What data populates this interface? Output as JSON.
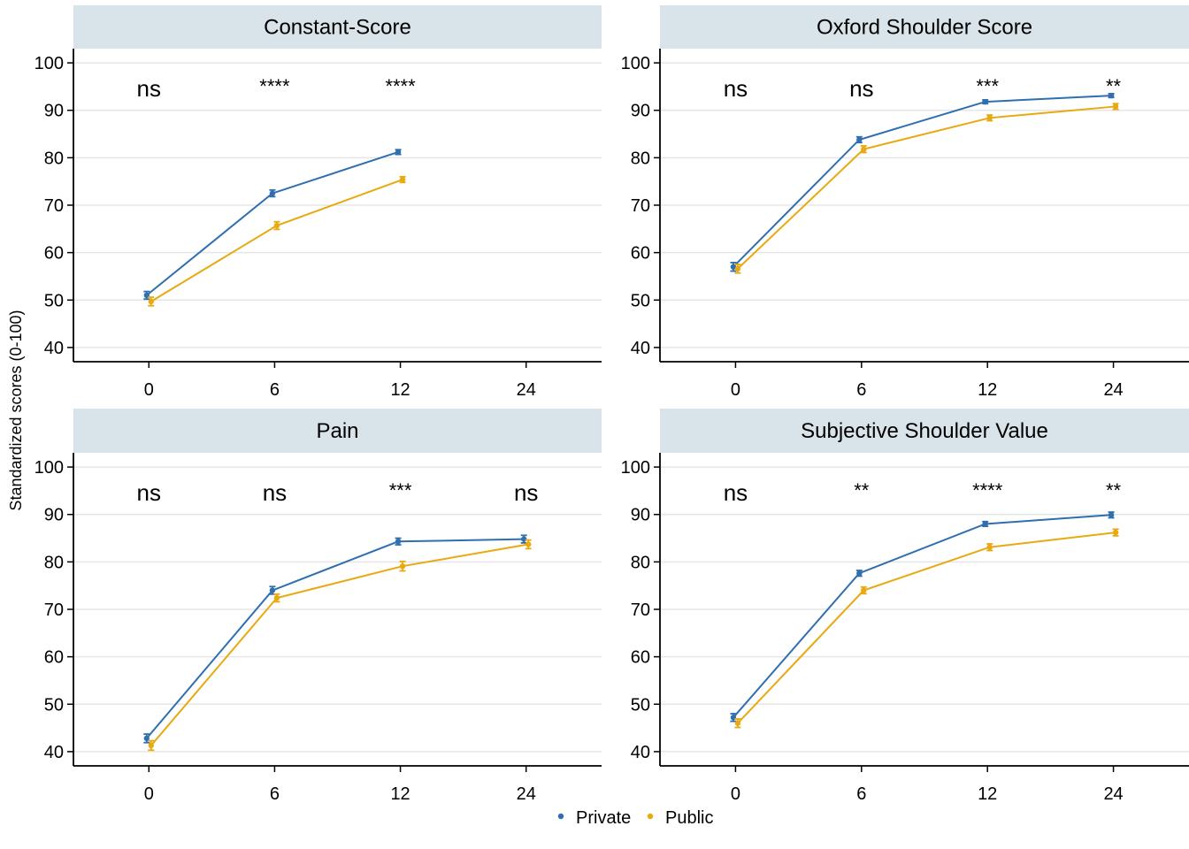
{
  "ylabel": "Standardized scores (0-100)",
  "colors": {
    "private": "#2f6fb0",
    "public": "#e8a911",
    "strip": "#d8e3ea",
    "grid": "#e6e6e6",
    "axis": "#000000"
  },
  "legend": [
    {
      "name": "Private",
      "color": "#2f6fb0"
    },
    {
      "name": "Public",
      "color": "#e8a911"
    }
  ],
  "chart_data": [
    {
      "type": "line",
      "title": "Constant-Score",
      "x": [
        "0",
        "6",
        "12",
        "24"
      ],
      "ylim": [
        37,
        103
      ],
      "yticks": [
        40,
        50,
        60,
        70,
        80,
        90,
        100
      ],
      "grid": true,
      "significance": [
        "ns",
        "****",
        "****",
        ""
      ],
      "series": [
        {
          "name": "Private",
          "values": [
            51.0,
            72.5,
            81.2,
            null
          ],
          "err": [
            0.8,
            0.7,
            0.5,
            null
          ]
        },
        {
          "name": "Public",
          "values": [
            49.7,
            65.7,
            75.4,
            null
          ],
          "err": [
            0.9,
            0.8,
            0.6,
            null
          ]
        }
      ]
    },
    {
      "type": "line",
      "title": "Oxford Shoulder Score",
      "x": [
        "0",
        "6",
        "12",
        "24"
      ],
      "ylim": [
        37,
        103
      ],
      "yticks": [
        40,
        50,
        60,
        70,
        80,
        90,
        100
      ],
      "grid": true,
      "significance": [
        "ns",
        "ns",
        "***",
        "**"
      ],
      "series": [
        {
          "name": "Private",
          "values": [
            57.0,
            83.8,
            91.8,
            93.1
          ],
          "err": [
            0.9,
            0.6,
            0.4,
            0.4
          ]
        },
        {
          "name": "Public",
          "values": [
            56.6,
            81.8,
            88.4,
            90.8
          ],
          "err": [
            0.9,
            0.7,
            0.6,
            0.6
          ]
        }
      ]
    },
    {
      "type": "line",
      "title": "Pain",
      "x": [
        "0",
        "6",
        "12",
        "24"
      ],
      "ylim": [
        37,
        103
      ],
      "yticks": [
        40,
        50,
        60,
        70,
        80,
        90,
        100
      ],
      "grid": true,
      "significance": [
        "ns",
        "ns",
        "***",
        "ns"
      ],
      "series": [
        {
          "name": "Private",
          "values": [
            42.8,
            74.0,
            84.3,
            84.8
          ],
          "err": [
            0.9,
            0.8,
            0.7,
            0.8
          ]
        },
        {
          "name": "Public",
          "values": [
            41.3,
            72.4,
            79.1,
            83.7
          ],
          "err": [
            1.0,
            0.8,
            1.0,
            0.9
          ]
        }
      ]
    },
    {
      "type": "line",
      "title": "Subjective Shoulder Value",
      "x": [
        "0",
        "6",
        "12",
        "24"
      ],
      "ylim": [
        37,
        103
      ],
      "yticks": [
        40,
        50,
        60,
        70,
        80,
        90,
        100
      ],
      "grid": true,
      "significance": [
        "ns",
        "**",
        "****",
        "**"
      ],
      "series": [
        {
          "name": "Private",
          "values": [
            47.2,
            77.6,
            88.0,
            89.9
          ],
          "err": [
            0.8,
            0.6,
            0.5,
            0.6
          ]
        },
        {
          "name": "Public",
          "values": [
            46.0,
            74.0,
            83.1,
            86.2
          ],
          "err": [
            0.9,
            0.7,
            0.7,
            0.7
          ]
        }
      ]
    }
  ]
}
